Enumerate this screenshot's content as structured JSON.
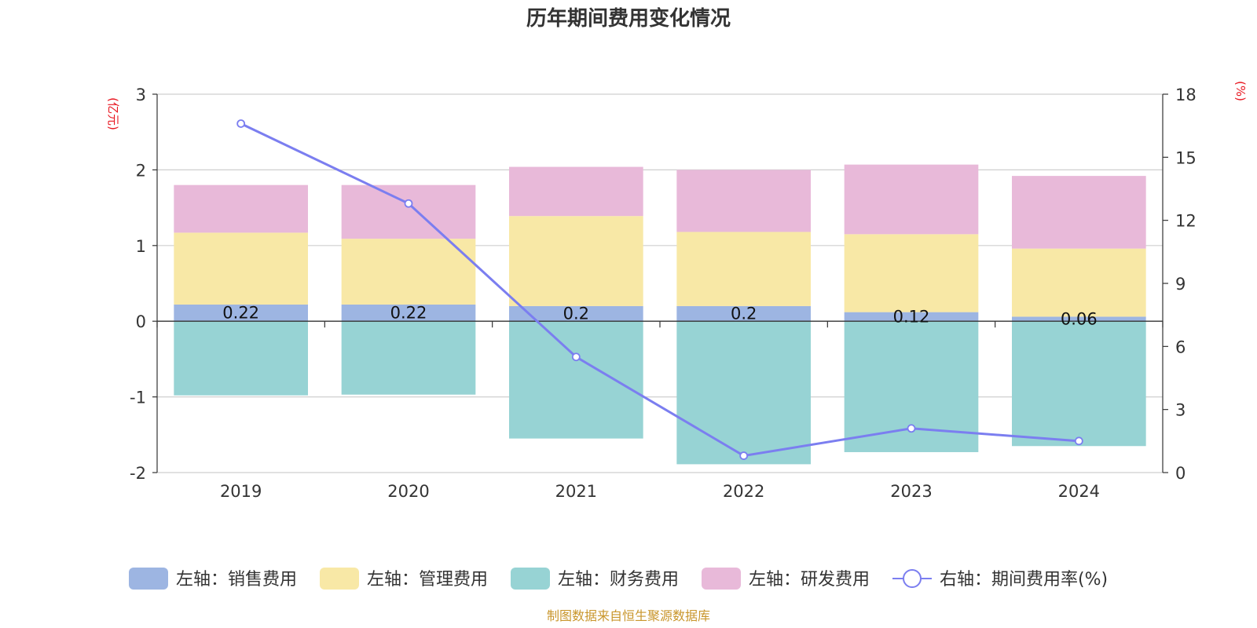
{
  "chart_data": {
    "type": "bar",
    "title": "历年期间费用变化情况",
    "categories": [
      "2019",
      "2020",
      "2021",
      "2022",
      "2023",
      "2024"
    ],
    "left_axis": {
      "unit": "(亿元)",
      "ylim": [
        -2,
        3
      ],
      "ticks": [
        -2,
        -1,
        0,
        1,
        2,
        3
      ]
    },
    "right_axis": {
      "unit": "(%)",
      "ylim": [
        0,
        18
      ],
      "ticks": [
        0,
        3,
        6,
        9,
        12,
        15,
        18
      ]
    },
    "series": [
      {
        "name": "左轴：销售费用",
        "stack": true,
        "color": "#9db5e2",
        "values": [
          0.22,
          0.22,
          0.2,
          0.2,
          0.12,
          0.06
        ],
        "labels": [
          "0.22",
          "0.22",
          "0.2",
          "0.2",
          "0.12",
          "0.06"
        ]
      },
      {
        "name": "左轴：管理费用",
        "stack": true,
        "color": "#f8e8a6",
        "values": [
          0.95,
          0.87,
          1.19,
          0.98,
          1.03,
          0.9
        ]
      },
      {
        "name": "左轴：财务费用",
        "stack": true,
        "color": "#97d3d4",
        "values": [
          -0.98,
          -0.97,
          -1.55,
          -1.89,
          -1.73,
          -1.65
        ]
      },
      {
        "name": "左轴：研发费用",
        "stack": true,
        "color": "#e8b9d9",
        "values": [
          0.63,
          0.71,
          0.65,
          0.82,
          0.92,
          0.96
        ]
      },
      {
        "name": "右轴：期间费用率(%)",
        "type": "line",
        "axis": "right",
        "color": "#7b7ef0",
        "values": [
          16.6,
          12.8,
          5.5,
          0.8,
          2.1,
          1.5
        ]
      }
    ],
    "grid": true,
    "legend_position": "bottom"
  },
  "source_note": "制图数据来自恒生聚源数据库"
}
